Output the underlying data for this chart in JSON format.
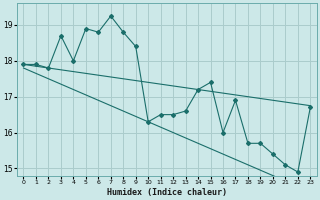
{
  "xlabel": "Humidex (Indice chaleur)",
  "x_data": [
    0,
    1,
    2,
    3,
    4,
    5,
    6,
    7,
    8,
    9,
    10,
    11,
    12,
    13,
    14,
    15,
    16,
    17,
    18,
    19,
    20,
    21,
    22,
    23
  ],
  "y_main": [
    17.9,
    17.9,
    17.8,
    18.7,
    18.0,
    18.9,
    18.8,
    19.25,
    18.8,
    18.4,
    16.3,
    16.5,
    16.5,
    16.6,
    17.2,
    17.4,
    16.0,
    16.9,
    15.7,
    15.7,
    15.4,
    15.1,
    14.9,
    16.7
  ],
  "y_trend_upper": [
    17.9,
    17.85,
    17.8,
    17.75,
    17.7,
    17.65,
    17.6,
    17.55,
    17.5,
    17.45,
    17.4,
    17.35,
    17.3,
    17.25,
    17.2,
    17.15,
    17.1,
    17.05,
    17.0,
    16.95,
    16.9,
    16.85,
    16.8,
    16.75
  ],
  "y_trend_lower": [
    17.8,
    17.65,
    17.5,
    17.35,
    17.2,
    17.05,
    16.9,
    16.75,
    16.6,
    16.45,
    16.3,
    16.15,
    16.0,
    15.85,
    15.7,
    15.55,
    15.4,
    15.25,
    15.1,
    14.95,
    14.8,
    14.65,
    14.5,
    14.35
  ],
  "bg_color": "#cce8e8",
  "line_color": "#1a6e6a",
  "grid_color": "#aacccc",
  "ylim": [
    14.8,
    19.6
  ],
  "yticks": [
    15,
    16,
    17,
    18,
    19
  ],
  "xlim": [
    -0.5,
    23.5
  ],
  "xticks": [
    0,
    1,
    2,
    3,
    4,
    5,
    6,
    7,
    8,
    9,
    10,
    11,
    12,
    13,
    14,
    15,
    16,
    17,
    18,
    19,
    20,
    21,
    22,
    23
  ]
}
